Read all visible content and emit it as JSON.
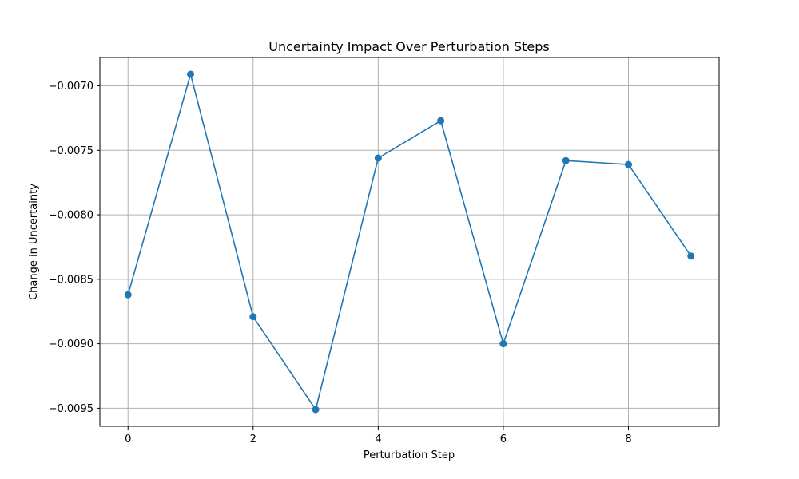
{
  "chart_data": {
    "type": "line",
    "title": "Uncertainty Impact Over Perturbation Steps",
    "xlabel": "Perturbation Step",
    "ylabel": "Change in Uncertainty",
    "x": [
      0,
      1,
      2,
      3,
      4,
      5,
      6,
      7,
      8,
      9
    ],
    "series": [
      {
        "values": [
          -0.00862,
          -0.00691,
          -0.00879,
          -0.00951,
          -0.00756,
          -0.00727,
          -0.009,
          -0.00758,
          -0.00761,
          -0.00832
        ],
        "color": "#1f77b4",
        "marker": "circle"
      }
    ],
    "xlim": [
      -0.45,
      9.45
    ],
    "ylim": [
      -0.00964,
      -0.00678
    ],
    "xticks": [
      0,
      2,
      4,
      6,
      8
    ],
    "xtick_labels": [
      "0",
      "2",
      "4",
      "6",
      "8"
    ],
    "yticks": [
      -0.007,
      -0.0075,
      -0.008,
      -0.0085,
      -0.009,
      -0.0095
    ],
    "ytick_labels": [
      "−0.0070",
      "−0.0075",
      "−0.0080",
      "−0.0085",
      "−0.0090",
      "−0.0095"
    ],
    "grid": true,
    "grid_color": "#b0b0b0",
    "legend": "none"
  }
}
